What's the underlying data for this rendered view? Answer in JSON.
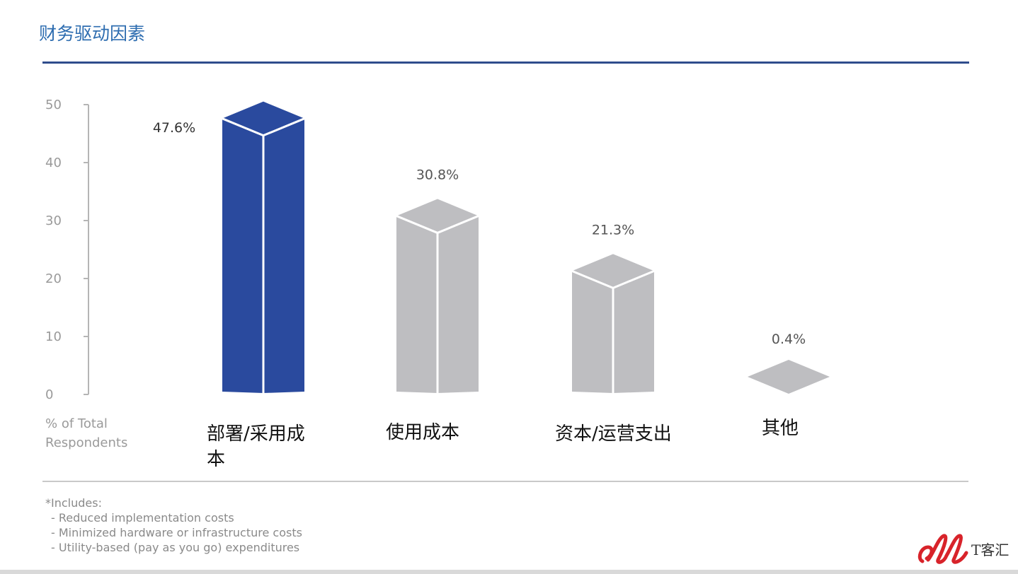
{
  "title": "财务驱动因素",
  "chart_data": {
    "type": "bar",
    "style": "3d-columns",
    "categories": [
      "部署/采用成本",
      "使用成本",
      "资本/运营支出",
      "其他"
    ],
    "values": [
      47.6,
      30.8,
      21.3,
      0.4
    ],
    "data_labels": [
      "47.6%",
      "30.8%",
      "21.3%",
      "0.4%"
    ],
    "ylabel": "% of Total Respondents",
    "ylim": [
      0,
      50
    ],
    "yticks": [
      "0",
      "10",
      "20",
      "30",
      "40",
      "50"
    ],
    "grid": false,
    "colors": [
      "#2a4a9e",
      "#bebec1",
      "#bebec1",
      "#bebec1"
    ]
  },
  "notes": {
    "heading": "*Includes:",
    "items": [
      "-  Reduced implementation costs",
      "-  Minimized hardware or infrastructure costs",
      "-  Utility-based (pay as you go) expenditures"
    ]
  },
  "logo": {
    "text": "T客汇",
    "color": "#d8232a"
  }
}
